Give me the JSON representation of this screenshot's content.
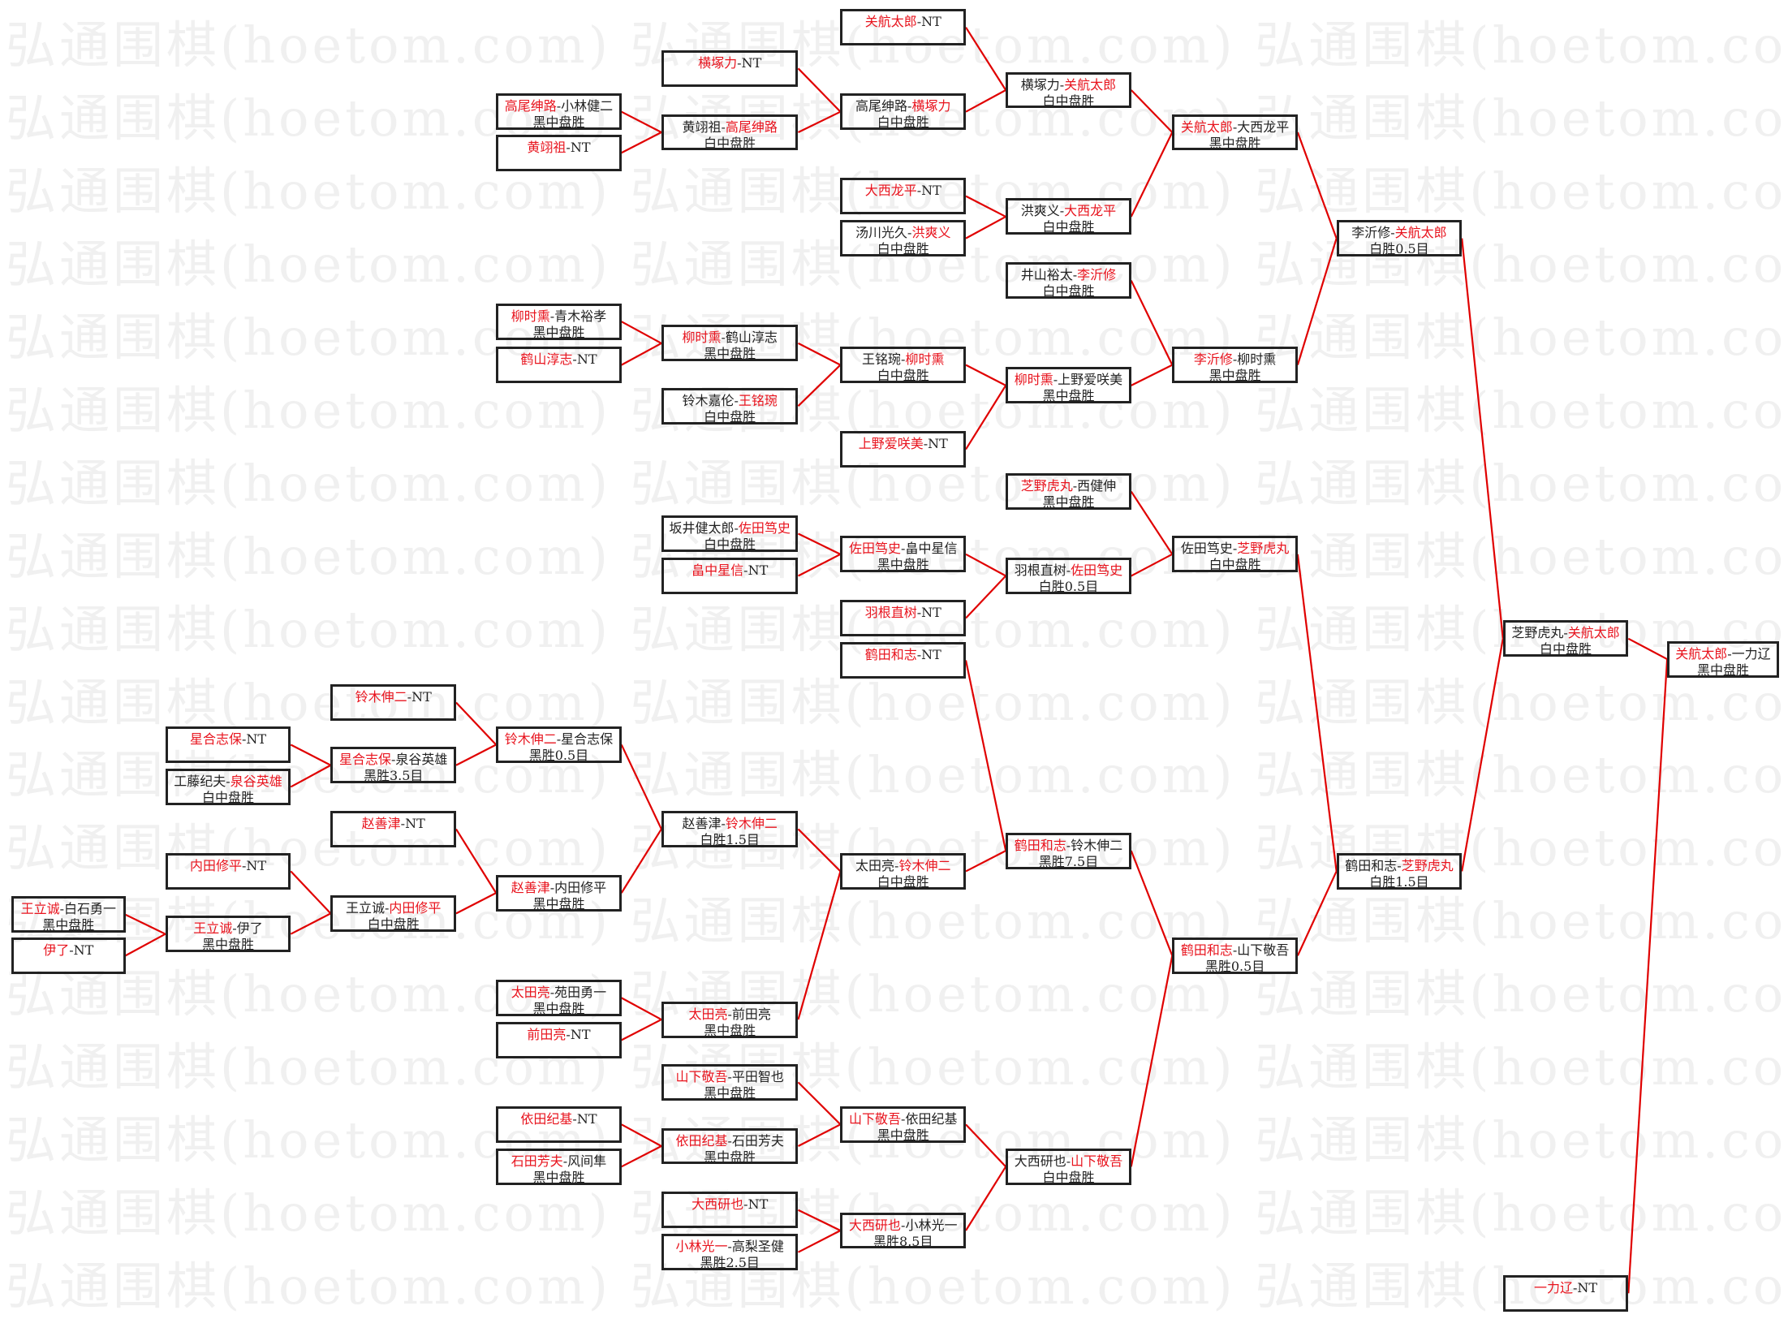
{
  "watermark": "弘通围棋(hoetom.com)",
  "colors": {
    "winner": "#e8141e",
    "line": "#e00000",
    "border": "#222222",
    "watermark": "#f0f0f0"
  },
  "separator": "-",
  "boxes": [
    {
      "id": "A1",
      "p1": "王立诚",
      "p2": "白石勇一",
      "winner": 1,
      "result": "黑中盘胜"
    },
    {
      "id": "A2",
      "p1": "伊了",
      "p2": "NT",
      "winner": 1,
      "result": ""
    },
    {
      "id": "B1",
      "p1": "星合志保",
      "p2": "NT",
      "winner": 1,
      "result": ""
    },
    {
      "id": "B2",
      "p1": "工藤纪夫",
      "p2": "泉谷英雄",
      "winner": 2,
      "result": "白中盘胜"
    },
    {
      "id": "B3",
      "p1": "内田修平",
      "p2": "NT",
      "winner": 1,
      "result": ""
    },
    {
      "id": "B4",
      "p1": "王立诚",
      "p2": "伊了",
      "winner": 1,
      "result": "黑中盘胜"
    },
    {
      "id": "C1",
      "p1": "铃木伸二",
      "p2": "NT",
      "winner": 1,
      "result": ""
    },
    {
      "id": "C2",
      "p1": "星合志保",
      "p2": "泉谷英雄",
      "winner": 1,
      "result": "黑胜3.5目"
    },
    {
      "id": "C3",
      "p1": "赵善津",
      "p2": "NT",
      "winner": 1,
      "result": ""
    },
    {
      "id": "C4",
      "p1": "王立诚",
      "p2": "内田修平",
      "winner": 2,
      "result": "白中盘胜"
    },
    {
      "id": "D1",
      "p1": "高尾绅路",
      "p2": "小林健二",
      "winner": 1,
      "result": "黑中盘胜"
    },
    {
      "id": "D2",
      "p1": "黄翊祖",
      "p2": "NT",
      "winner": 1,
      "result": ""
    },
    {
      "id": "D3",
      "p1": "柳时熏",
      "p2": "青木裕孝",
      "winner": 1,
      "result": "黑中盘胜"
    },
    {
      "id": "D4",
      "p1": "鹤山淳志",
      "p2": "NT",
      "winner": 1,
      "result": ""
    },
    {
      "id": "D5",
      "p1": "铃木伸二",
      "p2": "星合志保",
      "winner": 1,
      "result": "黑胜0.5目"
    },
    {
      "id": "D6",
      "p1": "赵善津",
      "p2": "内田修平",
      "winner": 1,
      "result": "黑中盘胜"
    },
    {
      "id": "D7",
      "p1": "太田亮",
      "p2": "苑田勇一",
      "winner": 1,
      "result": "黑中盘胜"
    },
    {
      "id": "D8",
      "p1": "前田亮",
      "p2": "NT",
      "winner": 1,
      "result": ""
    },
    {
      "id": "D9",
      "p1": "依田纪基",
      "p2": "NT",
      "winner": 1,
      "result": ""
    },
    {
      "id": "D10",
      "p1": "石田芳夫",
      "p2": "风间隼",
      "winner": 1,
      "result": "黑中盘胜"
    },
    {
      "id": "E1",
      "p1": "横塚力",
      "p2": "NT",
      "winner": 1,
      "result": ""
    },
    {
      "id": "E2",
      "p1": "黄翊祖",
      "p2": "高尾绅路",
      "winner": 2,
      "result": "白中盘胜"
    },
    {
      "id": "E3",
      "p1": "柳时熏",
      "p2": "鹤山淳志",
      "winner": 1,
      "result": "黑中盘胜"
    },
    {
      "id": "E4",
      "p1": "铃木嘉伦",
      "p2": "王铭琬",
      "winner": 2,
      "result": "白中盘胜"
    },
    {
      "id": "E5",
      "p1": "坂井健太郎",
      "p2": "佐田笃史",
      "winner": 2,
      "result": "白中盘胜"
    },
    {
      "id": "E6",
      "p1": "畠中星信",
      "p2": "NT",
      "winner": 1,
      "result": ""
    },
    {
      "id": "E7",
      "p1": "赵善津",
      "p2": "铃木伸二",
      "winner": 2,
      "result": "白胜1.5目"
    },
    {
      "id": "E8",
      "p1": "太田亮",
      "p2": "前田亮",
      "winner": 1,
      "result": "黑中盘胜"
    },
    {
      "id": "E9",
      "p1": "山下敬吾",
      "p2": "平田智也",
      "winner": 1,
      "result": "黑中盘胜"
    },
    {
      "id": "E10",
      "p1": "依田纪基",
      "p2": "石田芳夫",
      "winner": 1,
      "result": "黑中盘胜"
    },
    {
      "id": "E11",
      "p1": "大西研也",
      "p2": "NT",
      "winner": 1,
      "result": ""
    },
    {
      "id": "E12",
      "p1": "小林光一",
      "p2": "高梨圣健",
      "winner": 1,
      "result": "黑胜2.5目"
    },
    {
      "id": "F1",
      "p1": "关航太郎",
      "p2": "NT",
      "winner": 1,
      "result": ""
    },
    {
      "id": "F2",
      "p1": "高尾绅路",
      "p2": "横塚力",
      "winner": 2,
      "result": "白中盘胜"
    },
    {
      "id": "F3",
      "p1": "大西龙平",
      "p2": "NT",
      "winner": 1,
      "result": ""
    },
    {
      "id": "F4",
      "p1": "汤川光久",
      "p2": "洪爽义",
      "winner": 2,
      "result": "白中盘胜"
    },
    {
      "id": "F5",
      "p1": "王铭琬",
      "p2": "柳时熏",
      "winner": 2,
      "result": "白中盘胜"
    },
    {
      "id": "F6",
      "p1": "上野爱咲美",
      "p2": "NT",
      "winner": 1,
      "result": ""
    },
    {
      "id": "F7",
      "p1": "佐田笃史",
      "p2": "畠中星信",
      "winner": 1,
      "result": "黑中盘胜"
    },
    {
      "id": "F8",
      "p1": "羽根直树",
      "p2": "NT",
      "winner": 1,
      "result": ""
    },
    {
      "id": "F9",
      "p1": "鹤田和志",
      "p2": "NT",
      "winner": 1,
      "result": ""
    },
    {
      "id": "F10",
      "p1": "太田亮",
      "p2": "铃木伸二",
      "winner": 2,
      "result": "白中盘胜"
    },
    {
      "id": "F11",
      "p1": "山下敬吾",
      "p2": "依田纪基",
      "winner": 1,
      "result": "黑中盘胜"
    },
    {
      "id": "F12",
      "p1": "大西研也",
      "p2": "小林光一",
      "winner": 1,
      "result": "黑胜8.5目"
    },
    {
      "id": "G1",
      "p1": "横塚力",
      "p2": "关航太郎",
      "winner": 2,
      "result": "白中盘胜"
    },
    {
      "id": "G2",
      "p1": "洪爽义",
      "p2": "大西龙平",
      "winner": 2,
      "result": "白中盘胜"
    },
    {
      "id": "G3",
      "p1": "井山裕太",
      "p2": "李沂修",
      "winner": 2,
      "result": "白中盘胜"
    },
    {
      "id": "G4",
      "p1": "柳时熏",
      "p2": "上野爱咲美",
      "winner": 1,
      "result": "黑中盘胜"
    },
    {
      "id": "G5",
      "p1": "芝野虎丸",
      "p2": "西健伸",
      "winner": 1,
      "result": "黑中盘胜"
    },
    {
      "id": "G6",
      "p1": "羽根直树",
      "p2": "佐田笃史",
      "winner": 2,
      "result": "白胜0.5目"
    },
    {
      "id": "G7",
      "p1": "鹤田和志",
      "p2": "铃木伸二",
      "winner": 1,
      "result": "黑胜7.5目"
    },
    {
      "id": "G8",
      "p1": "大西研也",
      "p2": "山下敬吾",
      "winner": 2,
      "result": "白中盘胜"
    },
    {
      "id": "H1",
      "p1": "关航太郎",
      "p2": "大西龙平",
      "winner": 1,
      "result": "黑中盘胜"
    },
    {
      "id": "H2",
      "p1": "李沂修",
      "p2": "柳时熏",
      "winner": 1,
      "result": "黑中盘胜"
    },
    {
      "id": "H3",
      "p1": "佐田笃史",
      "p2": "芝野虎丸",
      "winner": 2,
      "result": "白中盘胜"
    },
    {
      "id": "H4",
      "p1": "鹤田和志",
      "p2": "山下敬吾",
      "winner": 1,
      "result": "黑胜0.5目"
    },
    {
      "id": "I1",
      "p1": "李沂修",
      "p2": "关航太郎",
      "winner": 2,
      "result": "白胜0.5目"
    },
    {
      "id": "I2",
      "p1": "鹤田和志",
      "p2": "芝野虎丸",
      "winner": 2,
      "result": "白胜1.5目"
    },
    {
      "id": "J1",
      "p1": "芝野虎丸",
      "p2": "关航太郎",
      "winner": 2,
      "result": "白中盘胜"
    },
    {
      "id": "J2",
      "p1": "一力辽",
      "p2": "NT",
      "winner": 1,
      "result": ""
    },
    {
      "id": "K1",
      "p1": "关航太郎",
      "p2": "一力辽",
      "winner": 1,
      "result": "黑中盘胜"
    }
  ],
  "edges": [
    [
      "A1",
      "B4"
    ],
    [
      "A2",
      "B4"
    ],
    [
      "B1",
      "C2"
    ],
    [
      "B2",
      "C2"
    ],
    [
      "B3",
      "C4"
    ],
    [
      "B4",
      "C4"
    ],
    [
      "C1",
      "D5"
    ],
    [
      "C2",
      "D5"
    ],
    [
      "C3",
      "D6"
    ],
    [
      "C4",
      "D6"
    ],
    [
      "D1",
      "E2"
    ],
    [
      "D2",
      "E2"
    ],
    [
      "D3",
      "E3"
    ],
    [
      "D4",
      "E3"
    ],
    [
      "D5",
      "E7"
    ],
    [
      "D6",
      "E7"
    ],
    [
      "D7",
      "E8"
    ],
    [
      "D8",
      "E8"
    ],
    [
      "D9",
      "E10"
    ],
    [
      "D10",
      "E10"
    ],
    [
      "E1",
      "F2"
    ],
    [
      "E2",
      "F2"
    ],
    [
      "E3",
      "F5"
    ],
    [
      "E4",
      "F5"
    ],
    [
      "E5",
      "F7"
    ],
    [
      "E6",
      "F7"
    ],
    [
      "E7",
      "F10"
    ],
    [
      "E8",
      "F10"
    ],
    [
      "E9",
      "F11"
    ],
    [
      "E10",
      "F11"
    ],
    [
      "E11",
      "F12"
    ],
    [
      "E12",
      "F12"
    ],
    [
      "F1",
      "G1"
    ],
    [
      "F2",
      "G1"
    ],
    [
      "F3",
      "G2"
    ],
    [
      "F4",
      "G2"
    ],
    [
      "F5",
      "G4"
    ],
    [
      "F6",
      "G4"
    ],
    [
      "F7",
      "G6"
    ],
    [
      "F8",
      "G6"
    ],
    [
      "F9",
      "G7"
    ],
    [
      "F10",
      "G7"
    ],
    [
      "F11",
      "G8"
    ],
    [
      "F12",
      "G8"
    ],
    [
      "G1",
      "H1"
    ],
    [
      "G2",
      "H1"
    ],
    [
      "G3",
      "H2"
    ],
    [
      "G4",
      "H2"
    ],
    [
      "G5",
      "H3"
    ],
    [
      "G6",
      "H3"
    ],
    [
      "G7",
      "H4"
    ],
    [
      "G8",
      "H4"
    ],
    [
      "H1",
      "I1"
    ],
    [
      "H2",
      "I1"
    ],
    [
      "H3",
      "I2"
    ],
    [
      "H4",
      "I2"
    ],
    [
      "I1",
      "J1"
    ],
    [
      "I2",
      "J1"
    ],
    [
      "J1",
      "K1"
    ],
    [
      "J2",
      "K1"
    ]
  ]
}
